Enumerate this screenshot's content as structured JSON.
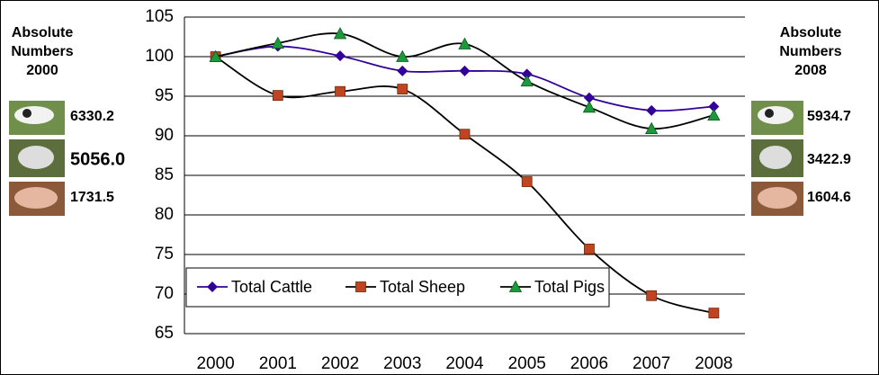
{
  "chart_data": {
    "type": "line",
    "categories": [
      "2000",
      "2001",
      "2002",
      "2003",
      "2004",
      "2005",
      "2006",
      "2007",
      "2008"
    ],
    "series": [
      {
        "name": "Total Cattle",
        "color": "#330099",
        "line_color": "#330099",
        "marker": "diamond",
        "values": [
          100,
          101.3,
          100.1,
          98.2,
          98.2,
          97.8,
          94.8,
          93.2,
          93.7
        ]
      },
      {
        "name": "Total Sheep",
        "color": "#c0441f",
        "line_color": "#000000",
        "marker": "square",
        "values": [
          100,
          95.1,
          95.6,
          95.9,
          90.2,
          84.2,
          75.7,
          69.8,
          67.6
        ]
      },
      {
        "name": "Total Pigs",
        "color": "#1a9a3a",
        "line_color": "#000000",
        "marker": "triangle",
        "values": [
          100,
          101.7,
          102.9,
          100.0,
          101.6,
          96.9,
          93.6,
          90.9,
          92.6
        ]
      }
    ],
    "ylim": [
      65,
      105
    ],
    "yticks": [
      65,
      70,
      75,
      80,
      85,
      90,
      95,
      100,
      105
    ],
    "grid": true,
    "legend": "lower left",
    "smooth": true
  },
  "side_panels": [
    {
      "title": [
        "Absolute",
        "Numbers",
        "2000"
      ],
      "numbers": [
        "6330.2",
        "5056.0",
        "1731.5"
      ]
    },
    {
      "title": [
        "Absolute",
        "Numbers",
        "2008"
      ],
      "numbers": [
        "5934.7",
        "3422.9",
        "1604.6"
      ]
    }
  ]
}
